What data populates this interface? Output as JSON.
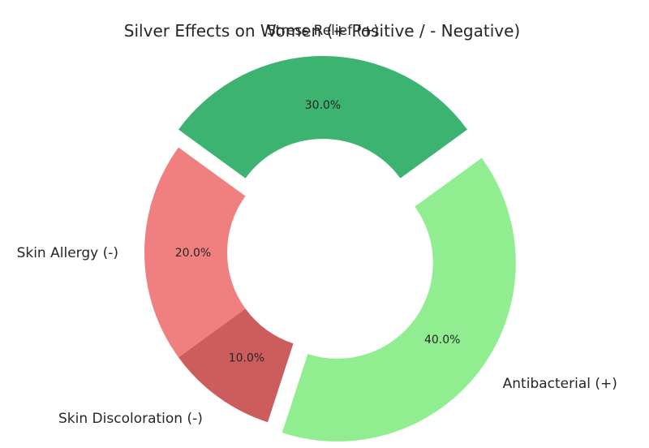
{
  "chart_data": {
    "type": "pie",
    "style": "donut",
    "title": "Silver Effects on Women (+ Positive / - Negative)",
    "categories": [
      "Antibacterial (+)",
      "Stress Relief (+)",
      "Skin Allergy (-)",
      "Skin Discoloration (-)"
    ],
    "values": [
      40.0,
      30.0,
      20.0,
      10.0
    ],
    "value_labels": [
      "40.0%",
      "30.0%",
      "20.0%",
      "10.0%"
    ],
    "colors": [
      "#90ee90",
      "#3cb371",
      "#f08080",
      "#cd5c5c"
    ],
    "exploded": [
      true,
      true,
      false,
      false
    ],
    "start_angle_deg": 252,
    "direction": "counterclockwise",
    "legend": "none"
  }
}
